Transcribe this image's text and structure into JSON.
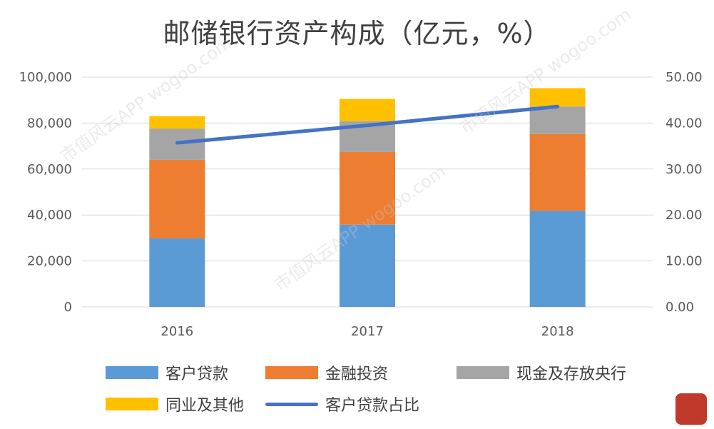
{
  "title": "邮储银行资产构成（亿元，%）",
  "chart_data": {
    "type": "bar",
    "stacked": true,
    "categories": [
      "2016",
      "2017",
      "2018"
    ],
    "series": [
      {
        "name": "客户贷款",
        "type": "bar",
        "color": "#5B9BD5",
        "values": [
          29800,
          35800,
          41800
        ]
      },
      {
        "name": "金融投资",
        "type": "bar",
        "color": "#ED7D31",
        "values": [
          34200,
          31600,
          33400
        ]
      },
      {
        "name": "现金及存放央行",
        "type": "bar",
        "color": "#A5A5A5",
        "values": [
          13600,
          13400,
          12000
        ]
      },
      {
        "name": "同业及其他",
        "type": "bar",
        "color": "#FFC000",
        "values": [
          5400,
          9700,
          8000
        ]
      },
      {
        "name": "客户贷款占比",
        "type": "line",
        "axis": "right",
        "color": "#4472C4",
        "values": [
          35.7,
          39.5,
          43.6
        ]
      }
    ],
    "y_left": {
      "lim": [
        0,
        100000
      ],
      "ticks": [
        "0",
        "20,000",
        "40,000",
        "60,000",
        "80,000",
        "100,000"
      ]
    },
    "y_right": {
      "lim": [
        0,
        50
      ],
      "ticks": [
        "0.00",
        "10.00",
        "20.00",
        "30.00",
        "40.00",
        "50.00"
      ]
    },
    "grid": true,
    "legend_position": "bottom"
  },
  "watermark_text": "市值风云APP wogoo.com"
}
